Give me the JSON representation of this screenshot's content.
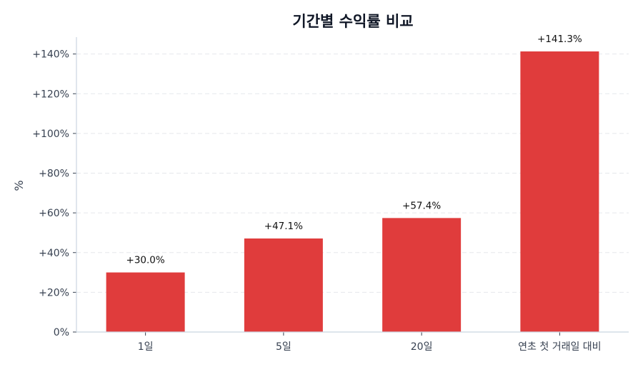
{
  "chart_data": {
    "type": "bar",
    "title": "기간별 수익률 비교",
    "xlabel": "",
    "ylabel": "%",
    "categories": [
      "1일",
      "5일",
      "20일",
      "연초 첫 거래일 대비"
    ],
    "values": [
      30.0,
      47.1,
      57.4,
      141.3
    ],
    "data_labels": [
      "+30.0%",
      "+47.1%",
      "+57.4%",
      "+141.3%"
    ],
    "ylim": [
      0,
      148.5
    ],
    "yticks": [
      0,
      20,
      40,
      60,
      80,
      100,
      120,
      140
    ],
    "ytick_labels": [
      "0%",
      "+20%",
      "+40%",
      "+60%",
      "+80%",
      "+100%",
      "+120%",
      "+140%"
    ],
    "grid": "horizontal dashed",
    "bar_color": "#e03c3c"
  }
}
